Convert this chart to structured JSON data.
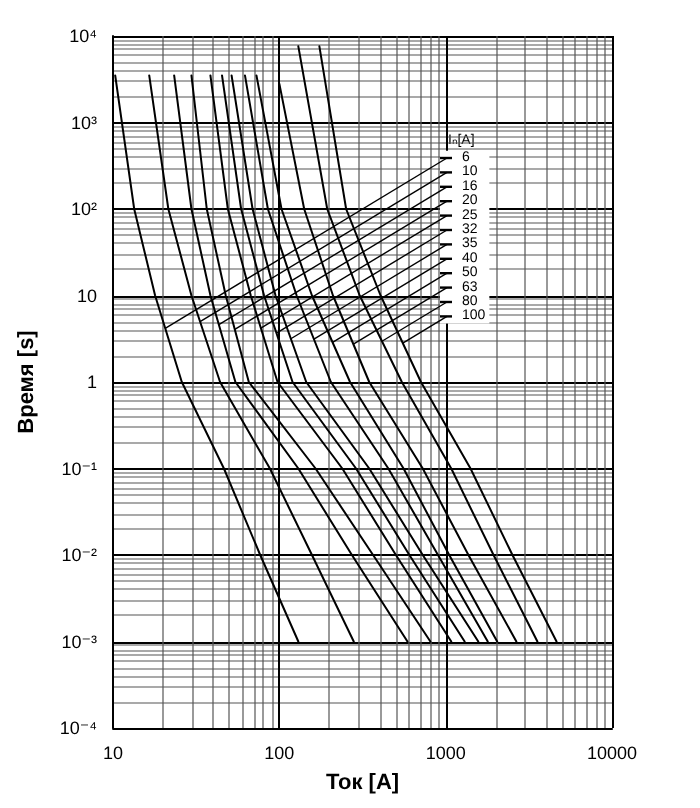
{
  "chart_data": {
    "type": "line",
    "xlabel": "Ток [A]",
    "ylabel": "Время [s]",
    "legend_title": "Iₙ[A]",
    "log": "xy",
    "grid": true,
    "legend": "top right",
    "marker": "none",
    "line_style": "solid",
    "xlim": [
      10,
      10000
    ],
    "xticks": [
      10,
      100,
      1000,
      10000
    ],
    "ylim": [
      0.0001,
      10000
    ],
    "yticks": [
      {
        "value": 0.0001,
        "label": "10⁻⁴"
      },
      {
        "value": 0.001,
        "label": "10⁻³"
      },
      {
        "value": 0.01,
        "label": "10⁻²"
      },
      {
        "value": 0.1,
        "label": "10⁻¹"
      },
      1,
      10,
      {
        "value": 100,
        "label": "10²"
      },
      {
        "value": 1000,
        "label": "10³"
      },
      {
        "value": 10000,
        "label": "10⁴"
      }
    ],
    "series": [
      {
        "name": "6",
        "color": "#000000",
        "x": [
          10.3,
          13.4,
          17.9,
          25.9,
          46.4,
          76.7,
          130
        ],
        "values": [
          3500,
          100,
          10,
          1,
          0.1,
          0.01,
          0.001
        ]
      },
      {
        "name": "10",
        "color": "#000000",
        "x": [
          16.5,
          21.5,
          29.6,
          44.0,
          87.7,
          157,
          280
        ],
        "values": [
          3500,
          100,
          10,
          1,
          0.1,
          0.01,
          0.001
        ]
      },
      {
        "name": "16",
        "color": "#000000",
        "x": [
          23.3,
          29.6,
          38.5,
          54.4,
          130,
          273,
          589
        ],
        "values": [
          3500,
          100,
          10,
          1,
          0.1,
          0.01,
          0.001
        ]
      },
      {
        "name": "20",
        "color": "#000000",
        "x": [
          29.6,
          36.6,
          47.6,
          65.5,
          165,
          366,
          809
        ],
        "values": [
          3500,
          100,
          10,
          1,
          0.1,
          0.01,
          0.001
        ]
      },
      {
        "name": "25",
        "color": "#000000",
        "x": [
          38.5,
          49.0,
          67.3,
          97.5,
          239,
          502,
          1080
        ],
        "values": [
          3500,
          100,
          10,
          1,
          0.1,
          0.01,
          0.001
        ]
      },
      {
        "name": "32",
        "color": "#000000",
        "x": [
          45.2,
          58.9,
          80.9,
          120,
          289,
          605,
          1300
        ],
        "values": [
          3500,
          100,
          10,
          1,
          0.1,
          0.01,
          0.001
        ]
      },
      {
        "name": "35",
        "color": "#000000",
        "x": [
          51.6,
          69.0,
          94.8,
          145,
          347,
          728,
          1570
        ],
        "values": [
          3500,
          100,
          10,
          1,
          0.1,
          0.01,
          0.001
        ]
      },
      {
        "name": "40",
        "color": "#000000",
        "x": [
          62.1,
          85.3,
          127,
          204,
          452,
          899,
          1790
        ],
        "values": [
          3500,
          100,
          10,
          1,
          0.1,
          0.01,
          0.001
        ]
      },
      {
        "name": "50",
        "color": "#000000",
        "x": [
          72.8,
          103,
          157,
          266,
          558,
          1050,
          2040
        ],
        "values": [
          3500,
          100,
          10,
          1,
          0.1,
          0.01,
          0.001
        ]
      },
      {
        "name": "63",
        "color": "#000000",
        "x": [
          100,
          141,
          210,
          347,
          728,
          1370,
          2660
        ],
        "values": [
          2800,
          100,
          10,
          1,
          0.1,
          0.01,
          0.001
        ]
      },
      {
        "name": "80",
        "color": "#000000",
        "x": [
          130,
          194,
          304,
          545,
          1080,
          1940,
          3560
        ],
        "values": [
          7600,
          100,
          10,
          1,
          0.1,
          0.01,
          0.001
        ]
      },
      {
        "name": "100",
        "color": "#000000",
        "x": [
          174,
          252,
          406,
          710,
          1410,
          2520,
          4640
        ],
        "values": [
          7600,
          100,
          10,
          1,
          0.1,
          0.01,
          0.001
        ]
      }
    ]
  }
}
